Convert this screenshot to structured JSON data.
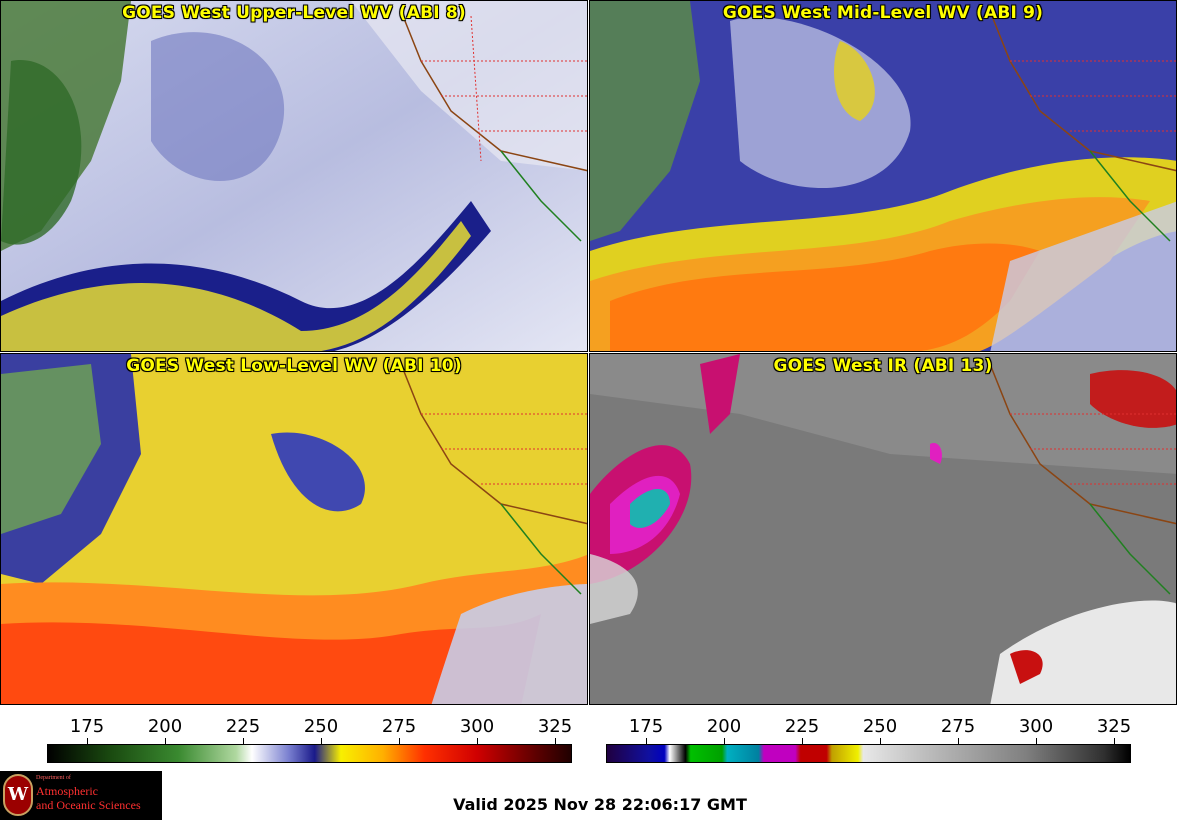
{
  "panels": [
    {
      "title": "GOES West Upper-Level WV (ABI 8)"
    },
    {
      "title": "GOES West Mid-Level WV (ABI 9)"
    },
    {
      "title": "GOES West Low-Level WV (ABI 10)"
    },
    {
      "title": "GOES West IR (ABI 13)"
    }
  ],
  "colorbar_left": {
    "ticks": [
      "175",
      "200",
      "225",
      "250",
      "275",
      "300",
      "325"
    ]
  },
  "colorbar_right": {
    "ticks": [
      "175",
      "200",
      "225",
      "250",
      "275",
      "300",
      "325"
    ]
  },
  "logo": {
    "seal_letter": "W",
    "department": "Department of",
    "line1": "Atmospheric",
    "line2": "and Oceanic Sciences"
  },
  "valid_time": "Valid 2025 Nov 28 22:06:17 GMT"
}
